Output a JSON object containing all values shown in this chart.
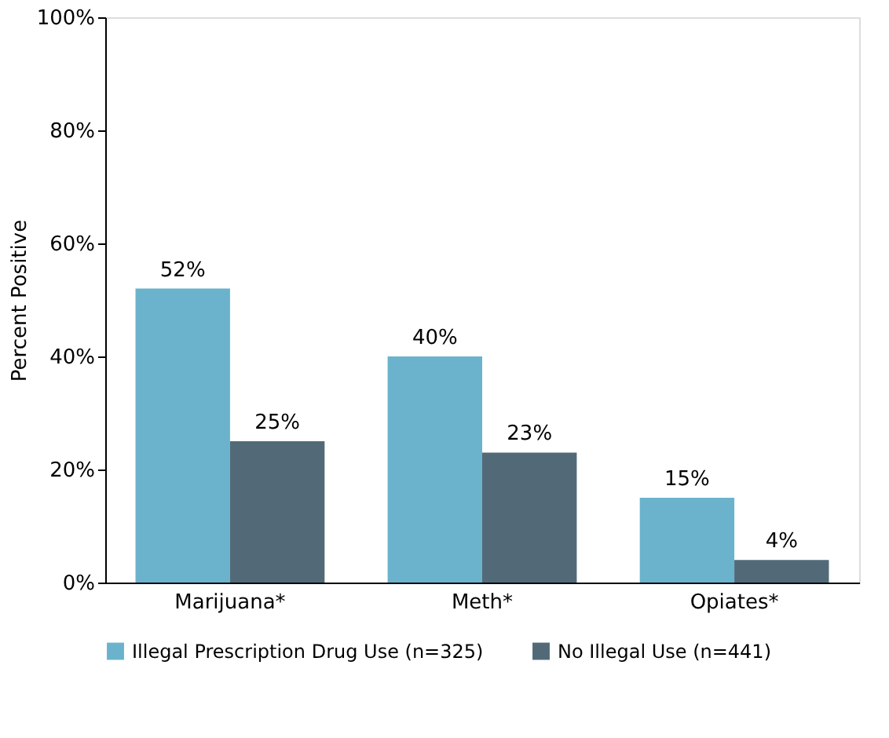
{
  "chart_data": {
    "type": "bar",
    "ylabel": "Percent Positive",
    "categories": [
      "Marijuana*",
      "Meth*",
      "Opiates*"
    ],
    "series": [
      {
        "name": "Illegal Prescription Drug Use (n=325)",
        "color": "#6bb3cc",
        "values": [
          52,
          40,
          15
        ],
        "value_labels": [
          "52%",
          "40%",
          "15%"
        ]
      },
      {
        "name": "No Illegal Use (n=441)",
        "color": "#526a78",
        "values": [
          25,
          23,
          4
        ],
        "value_labels": [
          "25%",
          "23%",
          "4%"
        ]
      }
    ],
    "ylim": [
      0,
      100
    ],
    "yticks": [
      {
        "value": 0,
        "label": "0%"
      },
      {
        "value": 20,
        "label": "20%"
      },
      {
        "value": 40,
        "label": "40%"
      },
      {
        "value": 60,
        "label": "60%"
      },
      {
        "value": 80,
        "label": "80%"
      },
      {
        "value": 100,
        "label": "100%"
      }
    ],
    "grid": false,
    "legend": "bottom"
  }
}
